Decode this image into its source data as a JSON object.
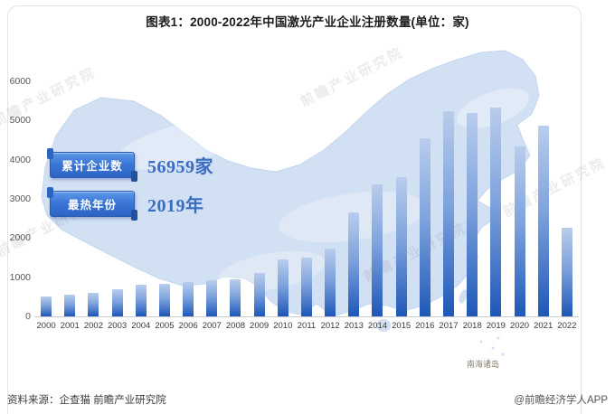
{
  "page": {
    "title": "图表1：2000-2022年中国激光产业企业注册数量(单位：家)"
  },
  "badges": [
    {
      "label": "累计企业数",
      "value": "56959家"
    },
    {
      "label": "最热年份",
      "value": "2019年"
    }
  ],
  "map": {
    "label": "南海诸岛"
  },
  "watermark": {
    "text": "前瞻产业研究院"
  },
  "footer": {
    "source": "资料来源：企查猫 前瞻产业研究院",
    "credit": "@前瞻经济学人APP"
  },
  "colors": {
    "bar_top": "#b9cdec",
    "bar_mid": "#7fa3dd",
    "bar_bottom": "#1e57b8",
    "map_fill": "#d2e0f3",
    "ribbon_blue": "#3a76d6",
    "value_text": "#3a6cc0",
    "axis_line": "#c9c9c9"
  },
  "chart_data": {
    "type": "bar",
    "title": "图表1：2000-2022年中国激光产业企业注册数量(单位：家)",
    "unit": "家",
    "categories": [
      "2000",
      "2001",
      "2002",
      "2003",
      "2004",
      "2005",
      "2006",
      "2007",
      "2008",
      "2009",
      "2010",
      "2011",
      "2012",
      "2013",
      "2014",
      "2015",
      "2016",
      "2017",
      "2018",
      "2019",
      "2020",
      "2021",
      "2022"
    ],
    "values": [
      500,
      550,
      600,
      700,
      800,
      830,
      880,
      920,
      950,
      1100,
      1460,
      1500,
      1730,
      2650,
      3380,
      3560,
      4550,
      5230,
      5200,
      5320,
      4350,
      4860,
      2270
    ],
    "ylim": [
      0,
      6000
    ],
    "ytick_step": 1000,
    "grid": false,
    "legend_position": "none",
    "background": "china-map-silhouette",
    "annotations": [
      {
        "label": "累计企业数",
        "value": "56959家"
      },
      {
        "label": "最热年份",
        "value": "2019年"
      }
    ]
  }
}
